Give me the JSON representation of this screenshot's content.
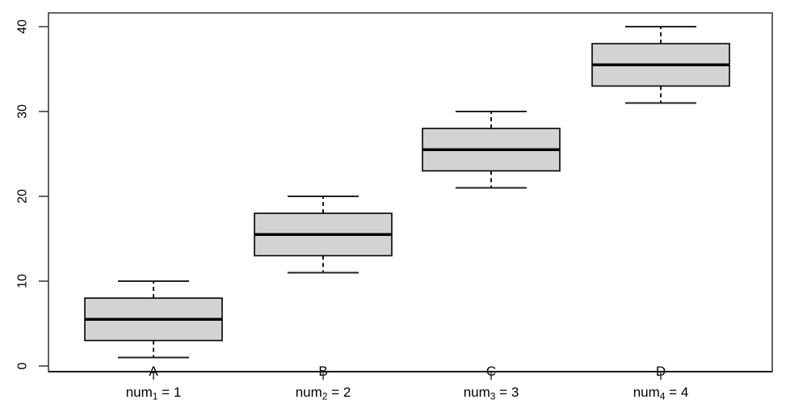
{
  "chart_data": {
    "type": "boxplot",
    "title": "",
    "xlabel": "",
    "ylabel": "",
    "ylim": [
      0,
      40
    ],
    "yticks": [
      "0",
      "10",
      "20",
      "30",
      "40"
    ],
    "grid": false,
    "legend": "none",
    "orientation": "vertical",
    "box_fill": "#d3d3d3",
    "box_border": "#000000",
    "median_color": "#000000",
    "whisker_color": "#000000",
    "axis_color": "#333333",
    "groups": [
      {
        "axis_letter": "A",
        "label_base": "num",
        "label_sub": "1",
        "label_rest": " = 1",
        "stats": {
          "whisker_low": 1,
          "q1": 3,
          "median": 5.5,
          "q3": 8,
          "whisker_high": 10
        }
      },
      {
        "axis_letter": "B",
        "label_base": "num",
        "label_sub": "2",
        "label_rest": " = 2",
        "stats": {
          "whisker_low": 11,
          "q1": 13,
          "median": 15.5,
          "q3": 18,
          "whisker_high": 20
        }
      },
      {
        "axis_letter": "C",
        "label_base": "num",
        "label_sub": "3",
        "label_rest": " = 3",
        "stats": {
          "whisker_low": 21,
          "q1": 23,
          "median": 25.5,
          "q3": 28,
          "whisker_high": 30
        }
      },
      {
        "axis_letter": "D",
        "label_base": "num",
        "label_sub": "4",
        "label_rest": " = 4",
        "stats": {
          "whisker_low": 31,
          "q1": 33,
          "median": 35.5,
          "q3": 38,
          "whisker_high": 40
        }
      }
    ]
  }
}
